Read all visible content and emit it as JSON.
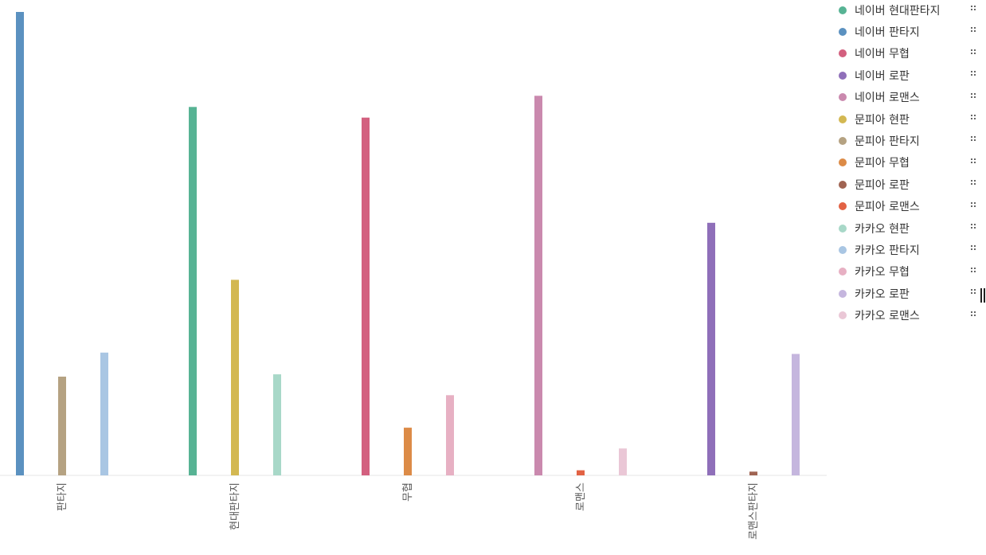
{
  "chart_data": {
    "type": "bar",
    "categories": [
      "판타지",
      "현대판타지",
      "무협",
      "로맨스",
      "로맨스판타지"
    ],
    "series": [
      {
        "name": "네이버 현대판타지",
        "color": "#57b394",
        "values": [
          0,
          79.5,
          0,
          0,
          0
        ]
      },
      {
        "name": "네이버 판타지",
        "color": "#5b91c0",
        "values": [
          100,
          0,
          0,
          0,
          0
        ]
      },
      {
        "name": "네이버 무협",
        "color": "#d3607f",
        "values": [
          0,
          0,
          77.2,
          0,
          0
        ]
      },
      {
        "name": "네이버 로판",
        "color": "#8f6fb9",
        "values": [
          0,
          0,
          0,
          0,
          54.5
        ]
      },
      {
        "name": "네이버 로맨스",
        "color": "#ca89ae",
        "values": [
          0,
          0,
          0,
          81.9,
          0
        ]
      },
      {
        "name": "문피아 현판",
        "color": "#d3b852",
        "values": [
          0,
          42.2,
          0,
          0,
          0
        ]
      },
      {
        "name": "문피아 판타지",
        "color": "#b5a282",
        "values": [
          21.3,
          0,
          0,
          0,
          0
        ]
      },
      {
        "name": "문피아 무협",
        "color": "#dc8b47",
        "values": [
          0,
          0,
          10.3,
          0,
          0
        ]
      },
      {
        "name": "문피아 로판",
        "color": "#a06452",
        "values": [
          0,
          0,
          0,
          0,
          0.8
        ]
      },
      {
        "name": "문피아 로맨스",
        "color": "#e26244",
        "values": [
          0,
          0,
          0,
          1.1,
          0
        ]
      },
      {
        "name": "카카오 현판",
        "color": "#a8d8c8",
        "values": [
          0,
          21.8,
          0,
          0,
          0
        ]
      },
      {
        "name": "카카오 판타지",
        "color": "#a9c6e3",
        "values": [
          26.5,
          0,
          0,
          0,
          0
        ]
      },
      {
        "name": "카카오 무협",
        "color": "#e7b0c3",
        "values": [
          0,
          0,
          17.3,
          0,
          0
        ]
      },
      {
        "name": "카카오 로판",
        "color": "#c5b6de",
        "values": [
          0,
          0,
          0,
          0,
          26.2
        ]
      },
      {
        "name": "카카오 로맨스",
        "color": "#eac7d6",
        "values": [
          0,
          0,
          0,
          5.8,
          0
        ]
      }
    ],
    "bars": [
      {
        "category": "판타지",
        "slot": 0,
        "series": "네이버 판타지"
      },
      {
        "category": "판타지",
        "slot": 1,
        "series": "문피아 판타지"
      },
      {
        "category": "판타지",
        "slot": 2,
        "series": "카카오 판타지"
      },
      {
        "category": "현대판타지",
        "slot": 0,
        "series": "네이버 현대판타지"
      },
      {
        "category": "현대판타지",
        "slot": 1,
        "series": "문피아 현판"
      },
      {
        "category": "현대판타지",
        "slot": 2,
        "series": "카카오 현판"
      },
      {
        "category": "무협",
        "slot": 0,
        "series": "네이버 무협"
      },
      {
        "category": "무협",
        "slot": 1,
        "series": "문피아 무협"
      },
      {
        "category": "무협",
        "slot": 2,
        "series": "카카오 무협"
      },
      {
        "category": "로맨스",
        "slot": 0,
        "series": "네이버 로맨스"
      },
      {
        "category": "로맨스",
        "slot": 1,
        "series": "문피아 로맨스"
      },
      {
        "category": "로맨스",
        "slot": 2,
        "series": "카카오 로맨스"
      },
      {
        "category": "로맨스판타지",
        "slot": 0,
        "series": "네이버 로판"
      },
      {
        "category": "로맨스판타지",
        "slot": 1,
        "series": "문피아 로판"
      },
      {
        "category": "로맨스판타지",
        "slot": 2,
        "series": "카카오 로판"
      }
    ],
    "ylim": [
      0,
      100
    ],
    "grid": false,
    "legend_position": "right",
    "title": "",
    "xlabel": "",
    "ylabel": ""
  }
}
